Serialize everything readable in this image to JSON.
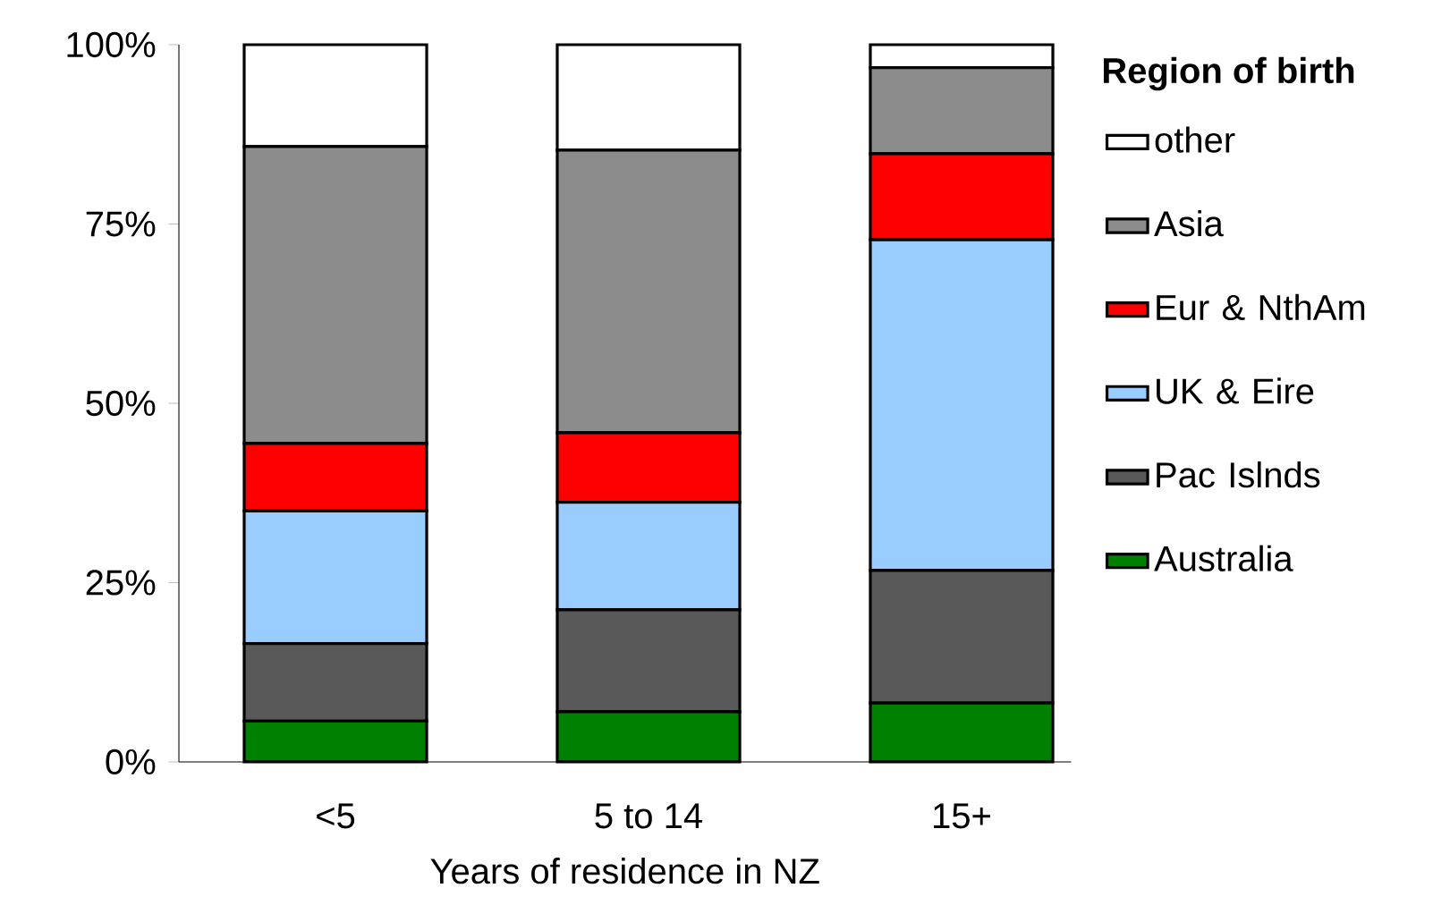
{
  "chart_data": {
    "type": "bar",
    "stacked": true,
    "xlabel": "Years of residence in NZ",
    "legend_title": "Region of birth",
    "legend": "right",
    "categories": [
      "<5",
      "5 to 14",
      "15+"
    ],
    "ylim": [
      0,
      100
    ],
    "yticks": [
      {
        "value": 0,
        "label": "0%"
      },
      {
        "value": 25,
        "label": "25%"
      },
      {
        "value": 50,
        "label": "50%"
      },
      {
        "value": 75,
        "label": "75%"
      },
      {
        "value": 100,
        "label": "100%"
      }
    ],
    "grid": false,
    "series": [
      {
        "name": "Australia",
        "color": "#008000",
        "values": [
          5.7,
          7.0,
          8.2
        ]
      },
      {
        "name": "Pac Islnds",
        "color": "#595959",
        "values": [
          10.8,
          14.2,
          18.5
        ]
      },
      {
        "name": "UK & Eire",
        "color": "#99ccff",
        "values": [
          18.5,
          15.0,
          46.1
        ]
      },
      {
        "name": "Eur & NthAm",
        "color": "#ff0000",
        "values": [
          9.4,
          9.7,
          12.0
        ]
      },
      {
        "name": "Asia",
        "color": "#8c8c8c",
        "values": [
          41.4,
          39.4,
          12.0
        ]
      },
      {
        "name": "other",
        "color": "#ffffff",
        "values": [
          14.2,
          14.7,
          3.2
        ]
      }
    ]
  }
}
